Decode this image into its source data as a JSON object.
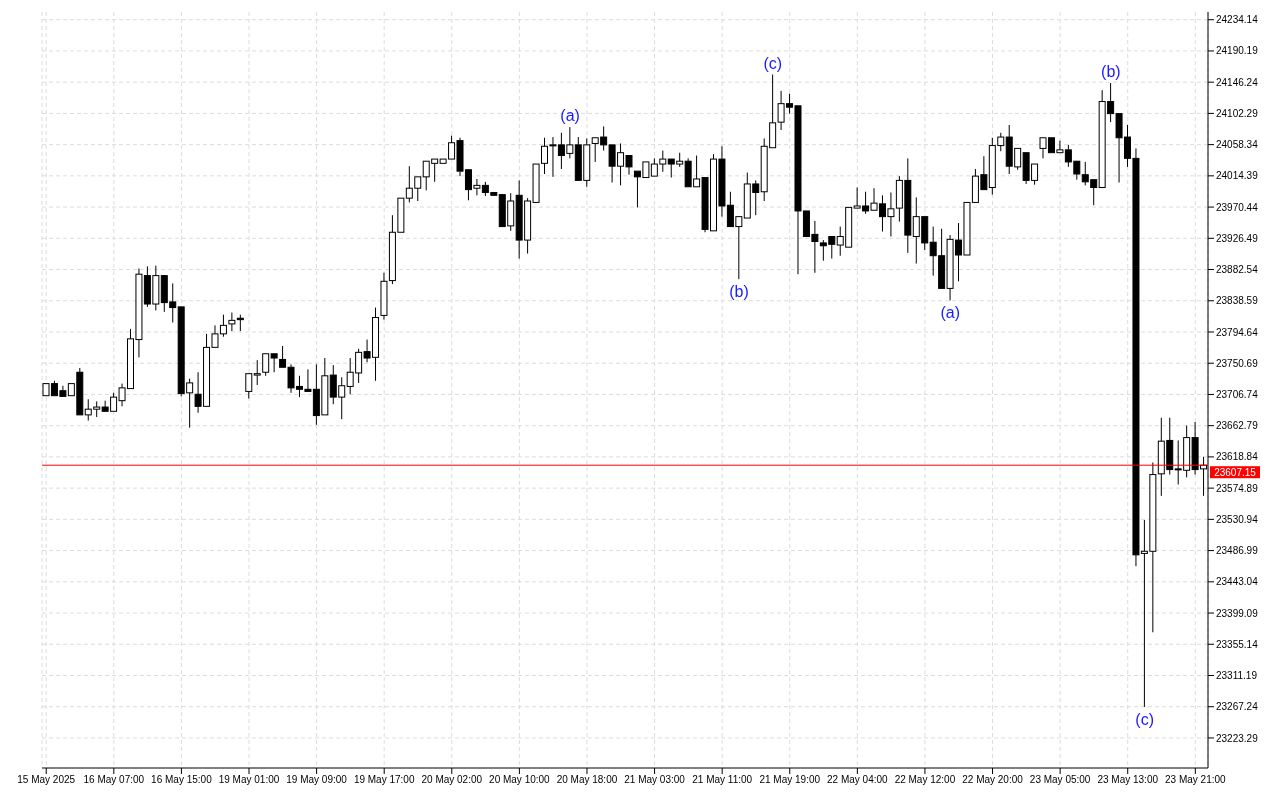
{
  "chart_data": {
    "type": "candlestick",
    "color": "#000000",
    "categories": [
      "15 May 2025",
      null,
      null,
      null,
      null,
      null,
      null,
      null,
      "16 May 07:00",
      null,
      null,
      null,
      null,
      null,
      null,
      null,
      "16 May 15:00",
      null,
      null,
      null,
      null,
      null,
      null,
      null,
      "19 May 01:00",
      null,
      null,
      null,
      null,
      null,
      null,
      null,
      "19 May 09:00",
      null,
      null,
      null,
      null,
      null,
      null,
      null,
      "19 May 17:00",
      null,
      null,
      null,
      null,
      null,
      null,
      null,
      "20 May 02:00",
      null,
      null,
      null,
      null,
      null,
      null,
      null,
      "20 May 10:00",
      null,
      null,
      null,
      null,
      null,
      null,
      null,
      "20 May 18:00",
      null,
      null,
      null,
      null,
      null,
      null,
      null,
      "21 May 03:00",
      null,
      null,
      null,
      null,
      null,
      null,
      null,
      "21 May 11:00",
      null,
      null,
      null,
      null,
      null,
      null,
      null,
      "21 May 19:00",
      null,
      null,
      null,
      null,
      null,
      null,
      null,
      "22 May 04:00",
      null,
      null,
      null,
      null,
      null,
      null,
      null,
      "22 May 12:00",
      null,
      null,
      null,
      null,
      null,
      null,
      null,
      "22 May 20:00",
      null,
      null,
      null,
      null,
      null,
      null,
      null,
      "23 May 05:00",
      null,
      null,
      null,
      null,
      null,
      null,
      null,
      "23 May 13:00",
      null,
      null,
      null,
      null,
      null,
      null,
      null,
      "23 May 21:00",
      null
    ],
    "ohlc": [
      [
        23705,
        23723,
        23704,
        23722
      ],
      [
        23722,
        23726,
        23703,
        23705
      ],
      [
        23712,
        23719,
        23703,
        23704
      ],
      [
        23705,
        23723,
        23703,
        23722
      ],
      [
        23738,
        23744,
        23678,
        23678
      ],
      [
        23678,
        23700,
        23670,
        23686
      ],
      [
        23686,
        23697,
        23675,
        23689
      ],
      [
        23689,
        23698,
        23683,
        23683
      ],
      [
        23683,
        23709,
        23683,
        23703
      ],
      [
        23698,
        23722,
        23690,
        23716
      ],
      [
        23715,
        23799,
        23715,
        23785
      ],
      [
        23784,
        23884,
        23759,
        23876
      ],
      [
        23874,
        23887,
        23830,
        23834
      ],
      [
        23834,
        23888,
        23825,
        23874
      ],
      [
        23874,
        23874,
        23823,
        23836
      ],
      [
        23837,
        23863,
        23808,
        23829
      ],
      [
        23830,
        23830,
        23704,
        23708
      ],
      [
        23709,
        23729,
        23660,
        23723
      ],
      [
        23707,
        23738,
        23681,
        23690
      ],
      [
        23690,
        23792,
        23690,
        23773
      ],
      [
        23773,
        23804,
        23773,
        23792
      ],
      [
        23792,
        23819,
        23788,
        23804
      ],
      [
        23806,
        23822,
        23796,
        23811
      ],
      [
        23814,
        23819,
        23796,
        23812
      ],
      [
        23711,
        23737,
        23701,
        23736
      ],
      [
        23734,
        23755,
        23720,
        23736
      ],
      [
        23738,
        23767,
        23733,
        23764
      ],
      [
        23764,
        23767,
        23738,
        23758
      ],
      [
        23756,
        23775,
        23745,
        23745
      ],
      [
        23745,
        23749,
        23709,
        23716
      ],
      [
        23718,
        23733,
        23703,
        23714
      ],
      [
        23714,
        23742,
        23708,
        23711
      ],
      [
        23714,
        23749,
        23664,
        23677
      ],
      [
        23678,
        23758,
        23678,
        23733
      ],
      [
        23734,
        23748,
        23693,
        23703
      ],
      [
        23703,
        23731,
        23672,
        23719
      ],
      [
        23718,
        23758,
        23707,
        23738
      ],
      [
        23737,
        23771,
        23723,
        23766
      ],
      [
        23767,
        23784,
        23752,
        23758
      ],
      [
        23759,
        23829,
        23726,
        23815
      ],
      [
        23818,
        23878,
        23812,
        23866
      ],
      [
        23867,
        23959,
        23862,
        23935
      ],
      [
        23935,
        23986,
        23935,
        23983
      ],
      [
        23983,
        24028,
        23977,
        23997
      ],
      [
        23997,
        24014,
        23979,
        24013
      ],
      [
        24013,
        24038,
        23994,
        24035
      ],
      [
        24032,
        24039,
        24006,
        24038
      ],
      [
        24032,
        24040,
        24030,
        24038
      ],
      [
        24038,
        24071,
        24035,
        24061
      ],
      [
        24064,
        24068,
        24014,
        24021
      ],
      [
        24023,
        24023,
        23980,
        23995
      ],
      [
        23997,
        24010,
        23987,
        24001
      ],
      [
        24001,
        24006,
        23986,
        23991
      ],
      [
        23991,
        23991,
        23986,
        23987
      ],
      [
        23988,
        23988,
        23942,
        23943
      ],
      [
        23944,
        23990,
        23937,
        23979
      ],
      [
        23987,
        24008,
        23898,
        23924
      ],
      [
        23924,
        23983,
        23905,
        23979
      ],
      [
        23977,
        24031,
        23977,
        24031
      ],
      [
        24032,
        24068,
        24017,
        24056
      ],
      [
        24058,
        24069,
        24013,
        24057
      ],
      [
        24058,
        24075,
        24024,
        24043
      ],
      [
        24046,
        24083,
        24039,
        24058
      ],
      [
        24058,
        24069,
        24008,
        24008
      ],
      [
        24008,
        24067,
        23999,
        24058
      ],
      [
        24060,
        24071,
        24034,
        24068
      ],
      [
        24069,
        24084,
        24050,
        24058
      ],
      [
        24058,
        24061,
        24005,
        24028
      ],
      [
        24028,
        24060,
        24001,
        24047
      ],
      [
        24043,
        24043,
        24016,
        24027
      ],
      [
        24021,
        24021,
        23970,
        24013
      ],
      [
        24012,
        24034,
        24010,
        24034
      ],
      [
        24014,
        24039,
        24012,
        24031
      ],
      [
        24031,
        24050,
        24020,
        24038
      ],
      [
        24038,
        24038,
        24012,
        24031
      ],
      [
        24031,
        24047,
        24027,
        24035
      ],
      [
        24035,
        24039,
        23998,
        23999
      ],
      [
        23999,
        24043,
        23998,
        24010
      ],
      [
        24012,
        24012,
        23935,
        23939
      ],
      [
        23937,
        24045,
        23937,
        24038
      ],
      [
        24038,
        24056,
        23957,
        23972
      ],
      [
        23973,
        23992,
        23940,
        23943
      ],
      [
        23943,
        23957,
        23869,
        23957
      ],
      [
        23955,
        24019,
        23955,
        24003
      ],
      [
        24003,
        24008,
        23959,
        23991
      ],
      [
        23992,
        24067,
        23979,
        24056
      ],
      [
        24054,
        24157,
        24054,
        24089
      ],
      [
        24090,
        24134,
        24079,
        24116
      ],
      [
        24116,
        24130,
        24102,
        24111
      ],
      [
        24113,
        24113,
        23876,
        23965
      ],
      [
        23965,
        23965,
        23928,
        23929
      ],
      [
        23932,
        23951,
        23878,
        23922
      ],
      [
        23920,
        23924,
        23895,
        23916
      ],
      [
        23929,
        23931,
        23898,
        23918
      ],
      [
        23917,
        23943,
        23902,
        23929
      ],
      [
        23914,
        23972,
        23914,
        23970
      ],
      [
        23969,
        23998,
        23966,
        23972
      ],
      [
        23972,
        23992,
        23961,
        23965
      ],
      [
        23966,
        23997,
        23966,
        23976
      ],
      [
        23975,
        23987,
        23936,
        23957
      ],
      [
        23957,
        23991,
        23929,
        23968
      ],
      [
        23969,
        24014,
        23950,
        24008
      ],
      [
        24008,
        24039,
        23906,
        23931
      ],
      [
        23929,
        23984,
        23891,
        23957
      ],
      [
        23957,
        23957,
        23910,
        23920
      ],
      [
        23921,
        23943,
        23874,
        23902
      ],
      [
        23902,
        23940,
        23856,
        23856
      ],
      [
        23856,
        23931,
        23839,
        23925
      ],
      [
        23924,
        23948,
        23866,
        23903
      ],
      [
        23903,
        23979,
        23903,
        23977
      ],
      [
        23977,
        24024,
        23976,
        24014
      ],
      [
        24016,
        24042,
        23992,
        23995
      ],
      [
        23998,
        24068,
        23988,
        24057
      ],
      [
        24057,
        24075,
        24049,
        24069
      ],
      [
        24069,
        24086,
        24017,
        24028
      ],
      [
        24027,
        24053,
        24023,
        24053
      ],
      [
        24047,
        24047,
        24003,
        24008
      ],
      [
        24008,
        24034,
        24002,
        24031
      ],
      [
        24053,
        24069,
        24039,
        24068
      ],
      [
        24068,
        24069,
        24045,
        24047
      ],
      [
        24047,
        24064,
        24046,
        24051
      ],
      [
        24051,
        24058,
        24027,
        24034
      ],
      [
        24035,
        24035,
        24009,
        24017
      ],
      [
        24016,
        24034,
        24001,
        24006
      ],
      [
        24009,
        24009,
        23973,
        23998
      ],
      [
        23998,
        24135,
        23998,
        24119
      ],
      [
        24119,
        24145,
        24090,
        24102
      ],
      [
        24102,
        24102,
        24005,
        24068
      ],
      [
        24069,
        24086,
        24027,
        24039
      ],
      [
        24039,
        24053,
        23465,
        23481
      ],
      [
        23483,
        23530,
        23267,
        23486
      ],
      [
        23486,
        23611,
        23372,
        23594
      ],
      [
        23595,
        23674,
        23564,
        23641
      ],
      [
        23642,
        23674,
        23594,
        23601
      ],
      [
        23602,
        23642,
        23580,
        23601
      ],
      [
        23600,
        23663,
        23590,
        23646
      ],
      [
        23646,
        23668,
        23594,
        23601
      ],
      [
        23602,
        23619,
        23564,
        23607.15
      ]
    ],
    "ylim": [
      23181,
      24245
    ],
    "yticks": [
      24234.14,
      24190.19,
      24146.24,
      24102.29,
      24058.34,
      24014.39,
      23970.44,
      23926.49,
      23882.54,
      23838.59,
      23794.64,
      23750.69,
      23706.74,
      23662.79,
      23618.84,
      23574.89,
      23530.94,
      23486.99,
      23443.04,
      23399.09,
      23355.14,
      23311.19,
      23267.24,
      23223.29
    ],
    "grid": true,
    "ref_lines": [
      {
        "axis": "y",
        "value": 23607.15,
        "label": "23607.15",
        "color": "#ff0000"
      }
    ],
    "annotations": [
      {
        "text": "(a)",
        "y": 24083
      },
      {
        "text": "(c)",
        "y": 24157
      },
      {
        "text": "(b)",
        "y": 23869
      },
      {
        "text": "(a)",
        "y": 23839
      },
      {
        "text": "(b)",
        "y": 24145
      },
      {
        "text": "(c)",
        "y": 23267
      }
    ]
  }
}
